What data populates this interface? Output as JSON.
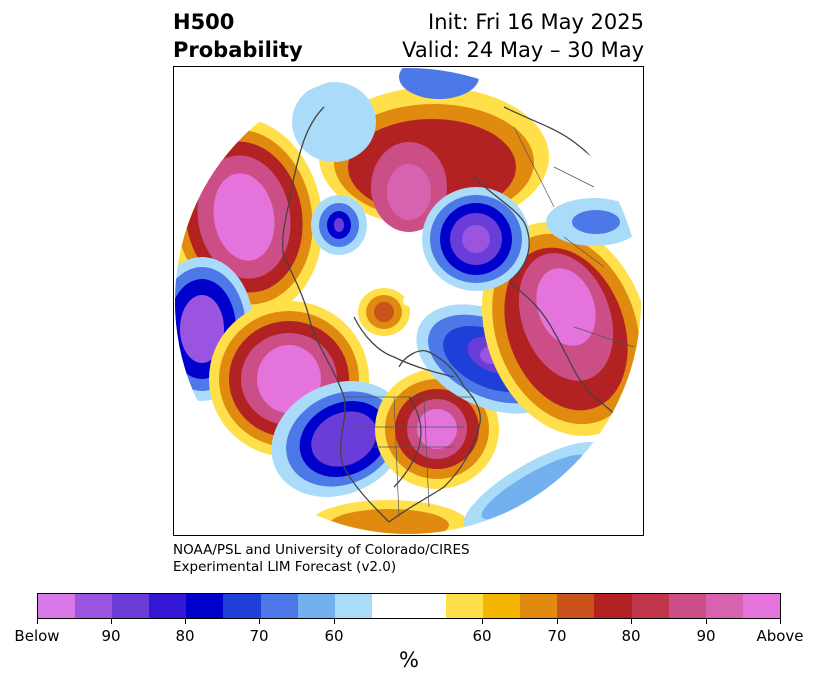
{
  "title": {
    "left_line1": "H500",
    "left_line2": "Probability",
    "right_line1": "Init: Fri 16 May 2025",
    "right_line2": "Valid: 24 May – 30 May"
  },
  "credit": {
    "line1": "NOAA/PSL and University of Colorado/CIRES",
    "line2": "Experimental LIM Forecast (v2.0)"
  },
  "colorbar": {
    "unit": "%",
    "colors": [
      "#d877e8",
      "#9a54e0",
      "#6a3cd8",
      "#3418d4",
      "#0000cc",
      "#1e3fd8",
      "#4d78e8",
      "#72b0f0",
      "#aadcfa",
      "#ffffff",
      "#ffe04a",
      "#f4b600",
      "#e08a10",
      "#c8541c",
      "#b22222",
      "#c0364a",
      "#cc4e86",
      "#d662b0",
      "#e474dc"
    ],
    "tick_labels": [
      "Below",
      "90",
      "80",
      "70",
      "60",
      "60",
      "70",
      "80",
      "90",
      "Above"
    ]
  },
  "map": {
    "projection": "north polar stereographic",
    "features": [
      "coastlines",
      "country borders",
      "state borders"
    ],
    "anomalies": [
      {
        "sign": "above",
        "max_probability": "Above",
        "location": "western Pacific / East Asia"
      },
      {
        "sign": "above",
        "max_probability": "Above",
        "location": "northeast Pacific"
      },
      {
        "sign": "above",
        "max_probability": "90",
        "location": "Eastern Siberia / Kamchatka"
      },
      {
        "sign": "above",
        "max_probability": "Above",
        "location": "central-eastern United States"
      },
      {
        "sign": "above",
        "max_probability": "Above",
        "location": "Scandinavia / Western Russia"
      },
      {
        "sign": "above",
        "max_probability": "70",
        "location": "North Pole"
      },
      {
        "sign": "below",
        "max_probability": "Below",
        "location": "Ural / West Siberia"
      },
      {
        "sign": "below",
        "max_probability": "Below",
        "location": "Western United States"
      },
      {
        "sign": "below",
        "max_probability": "Below",
        "location": "Central Pacific"
      },
      {
        "sign": "below",
        "max_probability": "90",
        "location": "Greenland / North Atlantic"
      },
      {
        "sign": "below",
        "max_probability": "90",
        "location": "East Asia / Korea"
      }
    ]
  }
}
